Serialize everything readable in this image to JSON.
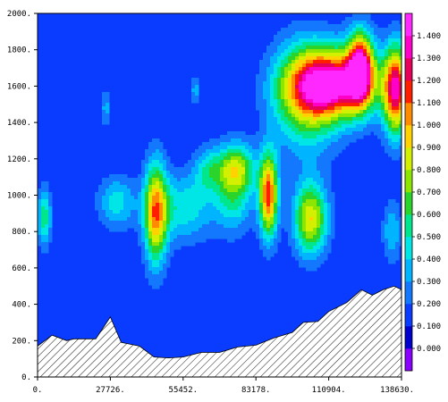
{
  "chart_data": {
    "type": "heatmap",
    "title": "",
    "xlabel": "",
    "ylabel": "",
    "xlim": [
      0,
      138630
    ],
    "ylim": [
      0,
      2000
    ],
    "x_ticks": [
      "0.",
      "27726.",
      "55452.",
      "83178.",
      "110904.",
      "138630."
    ],
    "x_tick_values": [
      0,
      27726,
      55452,
      83178,
      110904,
      138630
    ],
    "y_ticks": [
      "0.",
      "200.",
      "400.",
      "600.",
      "800.",
      "1000.",
      "1200.",
      "1400.",
      "1600.",
      "1800.",
      "2000."
    ],
    "y_tick_values": [
      0,
      200,
      400,
      600,
      800,
      1000,
      1200,
      1400,
      1600,
      1800,
      2000
    ],
    "colorbar": {
      "labels": [
        "0.000",
        "0.100",
        "0.200",
        "0.300",
        "0.400",
        "0.500",
        "0.600",
        "0.700",
        "0.800",
        "0.900",
        "1.000",
        "1.100",
        "1.200",
        "1.300",
        "1.400"
      ],
      "levels": [
        0,
        0.1,
        0.2,
        0.3,
        0.4,
        0.5,
        0.6,
        0.7,
        0.8,
        0.9,
        1.0,
        1.1,
        1.2,
        1.3,
        1.4
      ],
      "colors": [
        "#8a00ff",
        "#0000cc",
        "#0a3cff",
        "#1478ff",
        "#00b4ff",
        "#00e6e6",
        "#00e68c",
        "#2bd42b",
        "#8ce600",
        "#d2f000",
        "#ffd200",
        "#ff8c00",
        "#ff1e00",
        "#e6005a",
        "#ff00c8",
        "#ff28ff"
      ]
    },
    "terrain_profile": {
      "x": [
        0,
        5545,
        11090,
        13863,
        22181,
        27726,
        31885,
        38816,
        44361,
        49906,
        55452,
        62383,
        69314,
        76247,
        83178,
        90109,
        97040,
        101200,
        106745,
        110904,
        117835,
        123381,
        127539,
        131698,
        135857,
        138630
      ],
      "y": [
        170,
        230,
        200,
        210,
        210,
        330,
        190,
        170,
        110,
        105,
        110,
        135,
        135,
        165,
        175,
        215,
        245,
        300,
        305,
        360,
        410,
        480,
        450,
        480,
        500,
        480
      ]
    },
    "field": {
      "background_level": 0.1,
      "blobs": [
        {
          "x": 112000,
          "y": 1610,
          "sx": 11000,
          "sy": 130,
          "amp": 1.25
        },
        {
          "x": 123000,
          "y": 1700,
          "sx": 3500,
          "sy": 140,
          "amp": 1.15
        },
        {
          "x": 136500,
          "y": 1580,
          "sx": 3500,
          "sy": 170,
          "amp": 1.2
        },
        {
          "x": 102000,
          "y": 1540,
          "sx": 9000,
          "sy": 220,
          "amp": 0.55
        },
        {
          "x": 88000,
          "y": 1000,
          "sx": 2500,
          "sy": 160,
          "amp": 1.05
        },
        {
          "x": 75000,
          "y": 1050,
          "sx": 5000,
          "sy": 160,
          "amp": 0.5
        },
        {
          "x": 104000,
          "y": 870,
          "sx": 4500,
          "sy": 140,
          "amp": 0.8
        },
        {
          "x": 45000,
          "y": 900,
          "sx": 3000,
          "sy": 200,
          "amp": 0.85
        },
        {
          "x": 55000,
          "y": 930,
          "sx": 9000,
          "sy": 130,
          "amp": 0.38
        },
        {
          "x": 30000,
          "y": 960,
          "sx": 5000,
          "sy": 100,
          "amp": 0.35
        },
        {
          "x": 2500,
          "y": 880,
          "sx": 1800,
          "sy": 110,
          "amp": 0.5
        },
        {
          "x": 65000,
          "y": 1140,
          "sx": 4000,
          "sy": 90,
          "amp": 0.33
        },
        {
          "x": 76000,
          "y": 1150,
          "sx": 5000,
          "sy": 80,
          "amp": 0.4
        },
        {
          "x": 135000,
          "y": 800,
          "sx": 2500,
          "sy": 120,
          "amp": 0.3
        },
        {
          "x": 26000,
          "y": 1480,
          "sx": 1200,
          "sy": 70,
          "amp": 0.25
        },
        {
          "x": 60000,
          "y": 1580,
          "sx": 1200,
          "sy": 60,
          "amp": 0.25
        }
      ]
    }
  }
}
